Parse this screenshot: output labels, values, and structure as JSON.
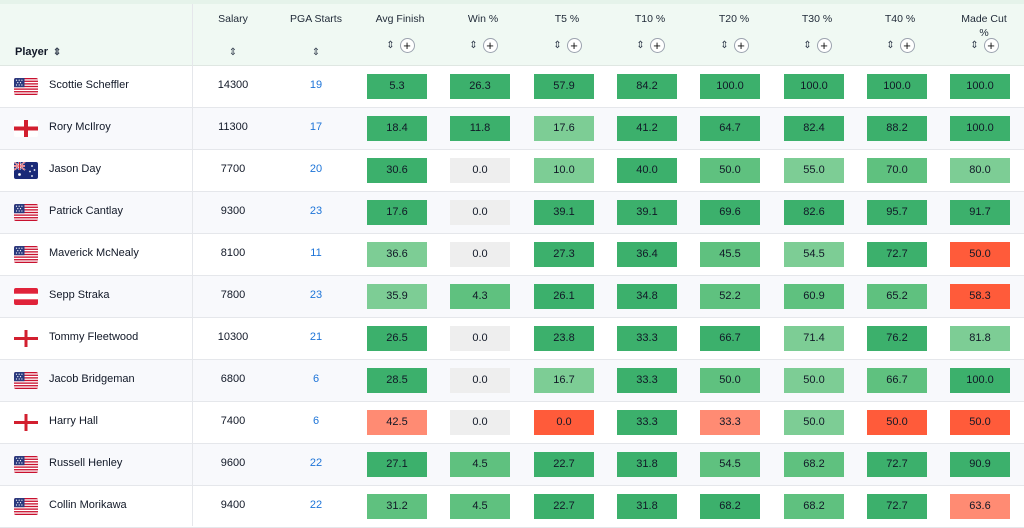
{
  "header": {
    "player": "Player",
    "salary": "Salary",
    "pga_starts": "PGA Starts",
    "avg_finish": "Avg Finish",
    "win_pct": "Win %",
    "t5": "T5 %",
    "t10": "T10 %",
    "t20": "T20 %",
    "t30": "T30 %",
    "t40": "T40 %",
    "made_cut": "Made Cut %",
    "sort_glyph": "⇕",
    "add_glyph": "+"
  },
  "colors": {
    "dark_green": "#3cb06c",
    "mid_green": "#5fc17f",
    "light_green": "#7dcd95",
    "gray": "#eeeeee",
    "red": "#ff5b3a",
    "light_red": "#ff8b73",
    "link_blue": "#1d74d8"
  },
  "rows": [
    {
      "name": "Scottie Scheffler",
      "flag": "us-flag",
      "salary": "14300",
      "starts": "19",
      "vals": [
        "5.3",
        "26.3",
        "57.9",
        "84.2",
        "100.0",
        "100.0",
        "100.0",
        "100.0"
      ],
      "tones": [
        "d",
        "d",
        "d",
        "d",
        "d",
        "d",
        "d",
        "d"
      ]
    },
    {
      "name": "Rory McIlroy",
      "flag": "northern-ireland-flag",
      "salary": "11300",
      "starts": "17",
      "vals": [
        "18.4",
        "11.8",
        "17.6",
        "41.2",
        "64.7",
        "82.4",
        "88.2",
        "100.0"
      ],
      "tones": [
        "d",
        "d",
        "l",
        "d",
        "d",
        "d",
        "d",
        "d"
      ]
    },
    {
      "name": "Jason Day",
      "flag": "australia-flag",
      "salary": "7700",
      "starts": "20",
      "vals": [
        "30.6",
        "0.0",
        "10.0",
        "40.0",
        "50.0",
        "55.0",
        "70.0",
        "80.0"
      ],
      "tones": [
        "d",
        "g",
        "l",
        "d",
        "m",
        "l",
        "m",
        "l"
      ]
    },
    {
      "name": "Patrick Cantlay",
      "flag": "us-flag",
      "salary": "9300",
      "starts": "23",
      "vals": [
        "17.6",
        "0.0",
        "39.1",
        "39.1",
        "69.6",
        "82.6",
        "95.7",
        "91.7"
      ],
      "tones": [
        "d",
        "g",
        "d",
        "d",
        "d",
        "d",
        "d",
        "d"
      ]
    },
    {
      "name": "Maverick McNealy",
      "flag": "us-flag",
      "salary": "8100",
      "starts": "11",
      "vals": [
        "36.6",
        "0.0",
        "27.3",
        "36.4",
        "45.5",
        "54.5",
        "72.7",
        "50.0"
      ],
      "tones": [
        "l",
        "g",
        "d",
        "d",
        "m",
        "l",
        "d",
        "r"
      ]
    },
    {
      "name": "Sepp Straka",
      "flag": "austria-flag",
      "salary": "7800",
      "starts": "23",
      "vals": [
        "35.9",
        "4.3",
        "26.1",
        "34.8",
        "52.2",
        "60.9",
        "65.2",
        "58.3"
      ],
      "tones": [
        "l",
        "m",
        "d",
        "d",
        "m",
        "m",
        "m",
        "r"
      ]
    },
    {
      "name": "Tommy Fleetwood",
      "flag": "england-flag",
      "salary": "10300",
      "starts": "21",
      "vals": [
        "26.5",
        "0.0",
        "23.8",
        "33.3",
        "66.7",
        "71.4",
        "76.2",
        "81.8"
      ],
      "tones": [
        "d",
        "g",
        "d",
        "d",
        "d",
        "l",
        "d",
        "l"
      ]
    },
    {
      "name": "Jacob Bridgeman",
      "flag": "us-flag",
      "salary": "6800",
      "starts": "6",
      "vals": [
        "28.5",
        "0.0",
        "16.7",
        "33.3",
        "50.0",
        "50.0",
        "66.7",
        "100.0"
      ],
      "tones": [
        "d",
        "g",
        "l",
        "d",
        "m",
        "l",
        "m",
        "d"
      ]
    },
    {
      "name": "Harry Hall",
      "flag": "england-flag",
      "salary": "7400",
      "starts": "6",
      "vals": [
        "42.5",
        "0.0",
        "0.0",
        "33.3",
        "33.3",
        "50.0",
        "50.0",
        "50.0"
      ],
      "tones": [
        "lr",
        "g",
        "r",
        "d",
        "lr",
        "l",
        "r",
        "r"
      ]
    },
    {
      "name": "Russell Henley",
      "flag": "us-flag",
      "salary": "9600",
      "starts": "22",
      "vals": [
        "27.1",
        "4.5",
        "22.7",
        "31.8",
        "54.5",
        "68.2",
        "72.7",
        "90.9"
      ],
      "tones": [
        "d",
        "m",
        "d",
        "d",
        "m",
        "m",
        "d",
        "d"
      ]
    },
    {
      "name": "Collin Morikawa",
      "flag": "us-flag",
      "salary": "9400",
      "starts": "22",
      "vals": [
        "31.2",
        "4.5",
        "22.7",
        "31.8",
        "68.2",
        "68.2",
        "72.7",
        "63.6"
      ],
      "tones": [
        "m",
        "m",
        "d",
        "d",
        "d",
        "m",
        "d",
        "lr"
      ]
    }
  ]
}
